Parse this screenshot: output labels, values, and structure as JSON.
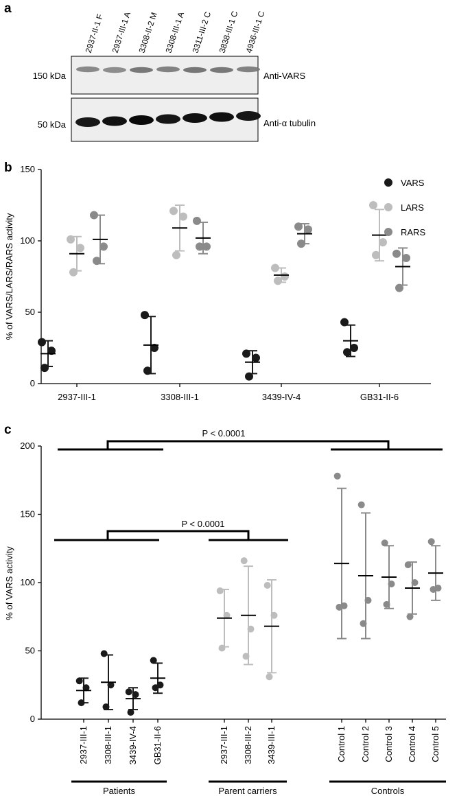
{
  "panels": {
    "a": "a",
    "b": "b",
    "c": "c"
  },
  "blot": {
    "lanes": [
      "2937-II-1 F",
      "2937-III-1 A",
      "3308-II-2 M",
      "3308-III-1 A",
      "3311-III-2 C",
      "3838-III-1 C",
      "4936-III-1 C"
    ],
    "top_label": "Anti-VARS",
    "bottom_label": "Anti-α tubulin",
    "top_mw": "150 kDa",
    "bottom_mw": "50 kDa",
    "top_band_intensity": [
      0.55,
      0.5,
      0.7,
      0.62,
      0.72,
      0.7,
      0.62
    ],
    "bottom_band_intensity": [
      0.82,
      0.9,
      1.0,
      0.85,
      0.92,
      0.92,
      0.86
    ]
  },
  "colors": {
    "VARS": "#1a1a1a",
    "LARS": "#bdbdbd",
    "RARS": "#8a8a8a"
  },
  "chart_data": [
    {
      "type": "scatter",
      "title": "",
      "ylabel": "% of VARS/LARS/RARS activity",
      "ylim": [
        0,
        150
      ],
      "yticks": [
        0,
        50,
        100,
        150
      ],
      "categories": [
        "2937-III-1",
        "3308-III-1",
        "3439-IV-4",
        "GB31-II-6"
      ],
      "legend": [
        "VARS",
        "LARS",
        "RARS"
      ],
      "series": [
        {
          "name": "VARS",
          "points": [
            [
              29,
              23,
              11
            ],
            [
              48,
              25,
              9
            ],
            [
              21,
              18,
              5
            ],
            [
              43,
              25,
              22
            ]
          ],
          "mean": [
            21,
            27,
            15,
            30
          ],
          "sd": [
            9,
            20,
            8,
            11
          ]
        },
        {
          "name": "LARS",
          "points": [
            [
              101,
              95,
              78
            ],
            [
              121,
              117,
              90
            ],
            [
              81,
              75,
              72
            ],
            [
              125,
              99,
              90
            ]
          ],
          "mean": [
            91,
            109,
            76,
            104
          ],
          "sd": [
            12,
            16,
            5,
            18
          ]
        },
        {
          "name": "RARS",
          "points": [
            [
              118,
              96,
              86
            ],
            [
              114,
              96,
              96
            ],
            [
              110,
              108,
              98
            ],
            [
              91,
              88,
              67
            ]
          ],
          "mean": [
            101,
            102,
            105,
            82
          ],
          "sd": [
            17,
            11,
            7,
            13
          ]
        }
      ]
    },
    {
      "type": "scatter",
      "title": "",
      "ylabel": "% of VARS activity",
      "ylim": [
        0,
        200
      ],
      "yticks": [
        0,
        50,
        100,
        150,
        200
      ],
      "groups": [
        {
          "name": "Patients",
          "color": "#1a1a1a",
          "categories": [
            "2937-III-1",
            "3308-III-1",
            "3439-IV-4",
            "GB31-II-6"
          ],
          "points": [
            [
              28,
              23,
              12
            ],
            [
              48,
              25,
              9
            ],
            [
              20,
              18,
              5
            ],
            [
              43,
              25,
              23
            ]
          ],
          "mean": [
            21,
            27,
            15,
            30
          ],
          "sd": [
            9,
            20,
            8,
            11
          ]
        },
        {
          "name": "Parent carriers",
          "color": "#bdbdbd",
          "categories": [
            "2937-III-1",
            "3308-III-2",
            "3439-III-1"
          ],
          "points": [
            [
              94,
              76,
              52
            ],
            [
              116,
              66,
              46
            ],
            [
              98,
              76,
              31
            ]
          ],
          "mean": [
            74,
            76,
            68
          ],
          "sd": [
            21,
            36,
            34
          ]
        },
        {
          "name": "Controls",
          "color": "#8a8a8a",
          "categories": [
            "Control 1",
            "Control 2",
            "Control 3",
            "Control 4",
            "Control 5"
          ],
          "points": [
            [
              178,
              83,
              82
            ],
            [
              157,
              87,
              70
            ],
            [
              129,
              99,
              84
            ],
            [
              113,
              100,
              75
            ],
            [
              130,
              96,
              95
            ]
          ],
          "mean": [
            114,
            105,
            104,
            96,
            107
          ],
          "sd": [
            55,
            46,
            23,
            19,
            20
          ]
        }
      ],
      "annotations": [
        {
          "text": "P < 0.0001",
          "between": [
            "Patients",
            "Controls"
          ]
        },
        {
          "text": "P < 0.0001",
          "between": [
            "Patients",
            "Parent carriers"
          ]
        }
      ]
    }
  ]
}
